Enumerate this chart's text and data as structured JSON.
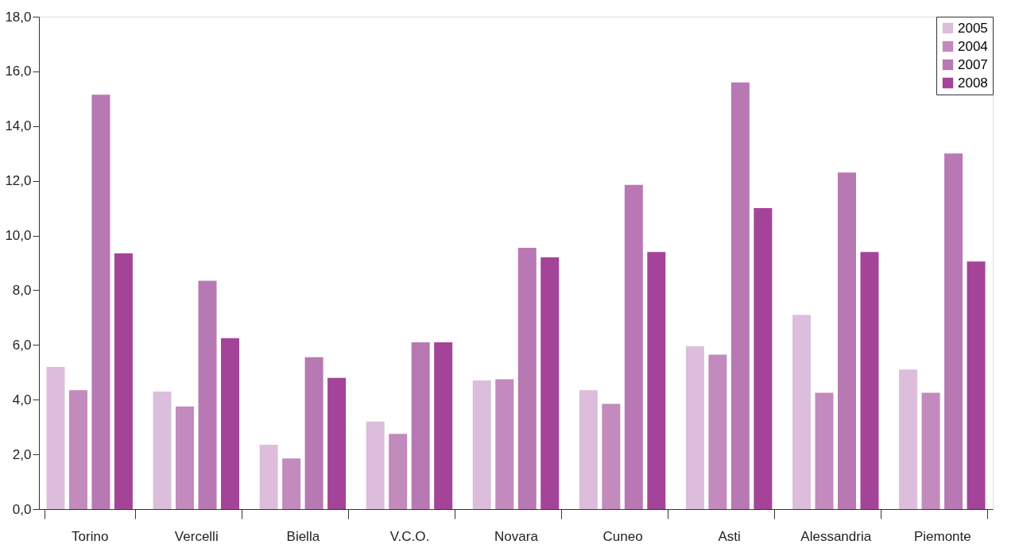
{
  "chart_data": {
    "type": "bar",
    "categories": [
      "Torino",
      "Vercelli",
      "Biella",
      "V.C.O.",
      "Novara",
      "Cuneo",
      "Asti",
      "Alessandria",
      "Piemonte"
    ],
    "series": [
      {
        "name": "2005",
        "color": "#dcbedc",
        "values": [
          5.2,
          4.3,
          2.35,
          3.2,
          4.7,
          4.35,
          5.95,
          7.1,
          5.1
        ]
      },
      {
        "name": "2004",
        "color": "#c28abd",
        "values": [
          4.35,
          3.75,
          1.85,
          2.75,
          4.75,
          3.85,
          5.65,
          4.25,
          4.25
        ]
      },
      {
        "name": "2007",
        "color": "#b878b3",
        "values": [
          15.15,
          8.35,
          5.55,
          6.1,
          9.55,
          11.85,
          15.6,
          12.3,
          13.0
        ]
      },
      {
        "name": "2008",
        "color": "#a44498",
        "values": [
          9.35,
          6.25,
          4.8,
          6.1,
          9.2,
          9.4,
          11.0,
          9.4,
          9.05
        ]
      }
    ],
    "ylim": [
      0,
      18
    ],
    "yticks": [
      {
        "value": 0,
        "label": "0,0"
      },
      {
        "value": 2,
        "label": "2,0"
      },
      {
        "value": 4,
        "label": "4,0"
      },
      {
        "value": 6,
        "label": "6,0"
      },
      {
        "value": 8,
        "label": "8,0"
      },
      {
        "value": 10,
        "label": "10,0"
      },
      {
        "value": 12,
        "label": "12,0"
      },
      {
        "value": 14,
        "label": "14,0"
      },
      {
        "value": 16,
        "label": "16,0"
      },
      {
        "value": 18,
        "label": "18,0"
      }
    ],
    "grid": false,
    "legend": "top right"
  }
}
